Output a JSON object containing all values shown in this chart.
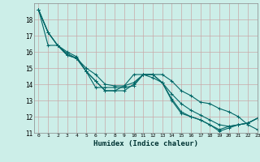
{
  "xlabel": "Humidex (Indice chaleur)",
  "ylabel": "",
  "bg_color": "#cceee8",
  "line_color": "#006666",
  "grid_color": "#c8a8a8",
  "xlim": [
    -0.5,
    23
  ],
  "ylim": [
    11,
    19
  ],
  "yticks": [
    11,
    12,
    13,
    14,
    15,
    16,
    17,
    18
  ],
  "xticks": [
    0,
    1,
    2,
    3,
    4,
    5,
    6,
    7,
    8,
    9,
    10,
    11,
    12,
    13,
    14,
    15,
    16,
    17,
    18,
    19,
    20,
    21,
    22,
    23
  ],
  "series": [
    [
      18.6,
      17.2,
      16.4,
      16.0,
      15.7,
      14.8,
      14.2,
      13.6,
      13.6,
      13.6,
      14.0,
      14.6,
      14.6,
      14.1,
      13.1,
      12.3,
      12.0,
      11.8,
      11.5,
      11.2,
      11.4,
      11.5,
      11.6,
      11.9
    ],
    [
      18.6,
      17.2,
      16.4,
      15.8,
      15.6,
      14.8,
      14.2,
      13.6,
      13.6,
      13.9,
      14.6,
      14.6,
      14.6,
      14.6,
      14.2,
      13.6,
      13.3,
      12.9,
      12.8,
      12.5,
      12.3,
      12.0,
      11.5,
      11.2
    ],
    [
      18.6,
      17.2,
      16.4,
      15.9,
      15.6,
      15.0,
      14.6,
      14.0,
      13.9,
      13.9,
      14.1,
      14.6,
      14.6,
      14.1,
      13.4,
      12.8,
      12.4,
      12.1,
      11.8,
      11.5,
      11.4,
      11.5,
      11.6,
      11.9
    ],
    [
      18.6,
      16.4,
      16.4,
      15.8,
      15.6,
      14.8,
      13.8,
      13.8,
      13.8,
      13.8,
      13.9,
      14.6,
      14.4,
      14.1,
      13.0,
      12.2,
      12.0,
      11.8,
      11.5,
      11.1,
      11.3,
      11.5,
      11.6,
      11.9
    ]
  ]
}
